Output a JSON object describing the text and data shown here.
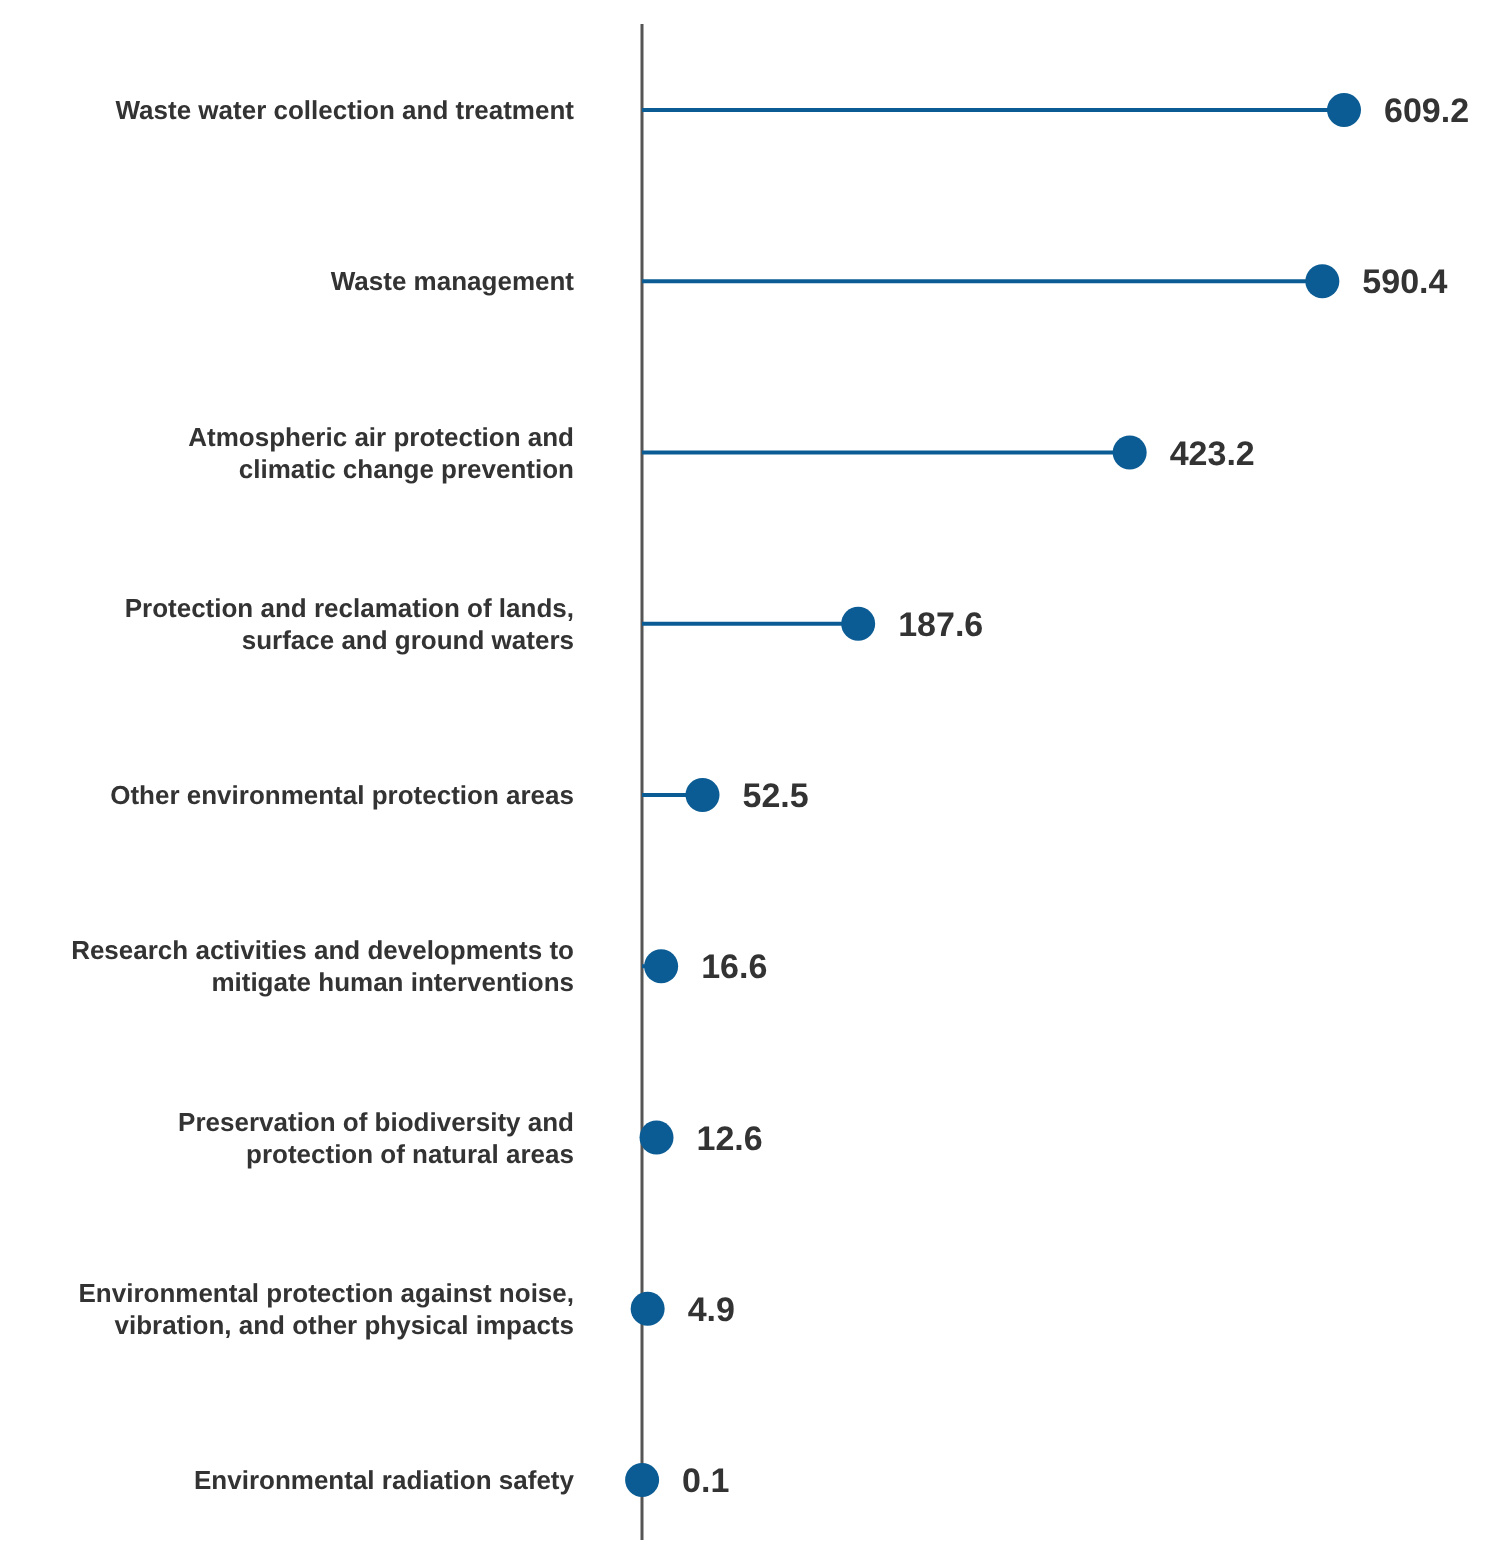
{
  "chart_data": {
    "type": "lollipop",
    "orientation": "horizontal",
    "data_labels": true,
    "color": "#0b5c94",
    "categories": [
      "Waste water collection and treatment",
      "Waste management",
      "Atmospheric air protection and climatic change prevention",
      "Protection and reclamation of lands, surface and ground waters",
      "Other environmental protection areas",
      "Research activities and developments to mitigate human interventions",
      "Preservation of biodiversity and protection of natural areas",
      "Environmental protection against noise, vibration, and other physical impacts",
      "Environmental radiation safety"
    ],
    "values": [
      609.2,
      590.4,
      423.2,
      187.6,
      52.5,
      16.6,
      12.6,
      4.9,
      0.1
    ]
  }
}
